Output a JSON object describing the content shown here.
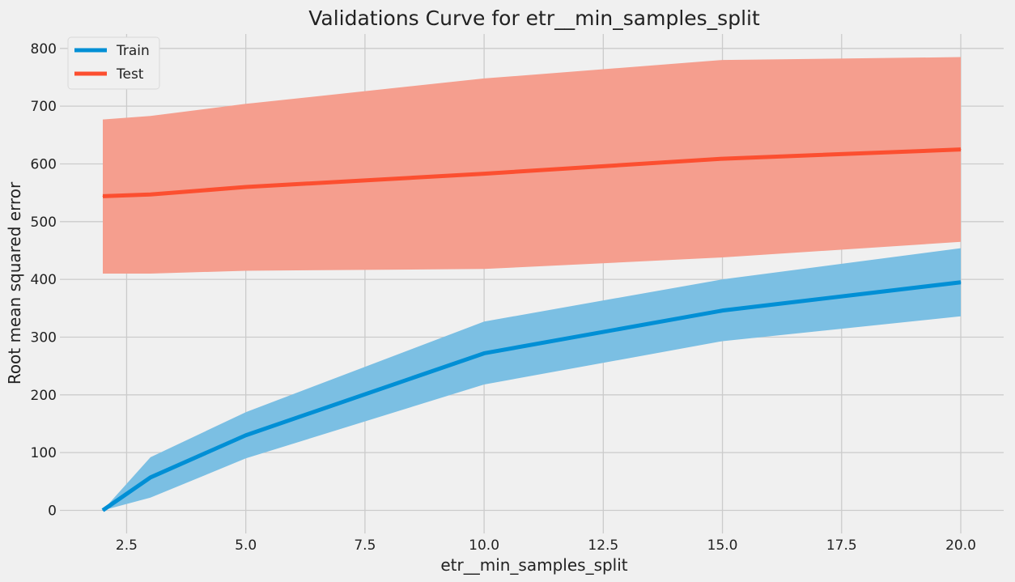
{
  "chart_data": {
    "type": "line",
    "title": "Validations Curve for etr__min_samples_split",
    "xlabel": "etr__min_samples_split",
    "ylabel": "Root mean squared error",
    "xlim": [
      1.1,
      20.9
    ],
    "ylim": [
      -40,
      825
    ],
    "xticks": [
      2.5,
      5.0,
      7.5,
      10.0,
      12.5,
      15.0,
      17.5,
      20.0
    ],
    "xtick_labels": [
      "2.5",
      "5.0",
      "7.5",
      "10.0",
      "12.5",
      "15.0",
      "17.5",
      "20.0"
    ],
    "yticks": [
      0,
      100,
      200,
      300,
      400,
      500,
      600,
      700,
      800
    ],
    "ytick_labels": [
      "0",
      "100",
      "200",
      "300",
      "400",
      "500",
      "600",
      "700",
      "800"
    ],
    "grid": true,
    "legend_position": "top-left",
    "x": [
      2,
      3,
      5,
      10,
      15,
      20
    ],
    "series": [
      {
        "name": "Train",
        "color": "#008fd5",
        "band_color": "#7bbfe3",
        "values": [
          0,
          57,
          130,
          272,
          346,
          395
        ],
        "lower": [
          0,
          22,
          90,
          218,
          293,
          336
        ],
        "upper": [
          0,
          92,
          170,
          327,
          400,
          454
        ]
      },
      {
        "name": "Test",
        "color": "#fc4f30",
        "band_color": "#f59e8e",
        "values": [
          544,
          547,
          560,
          583,
          609,
          625
        ],
        "lower": [
          410,
          410,
          415,
          418,
          438,
          465
        ],
        "upper": [
          677,
          683,
          704,
          748,
          780,
          785
        ]
      }
    ]
  }
}
